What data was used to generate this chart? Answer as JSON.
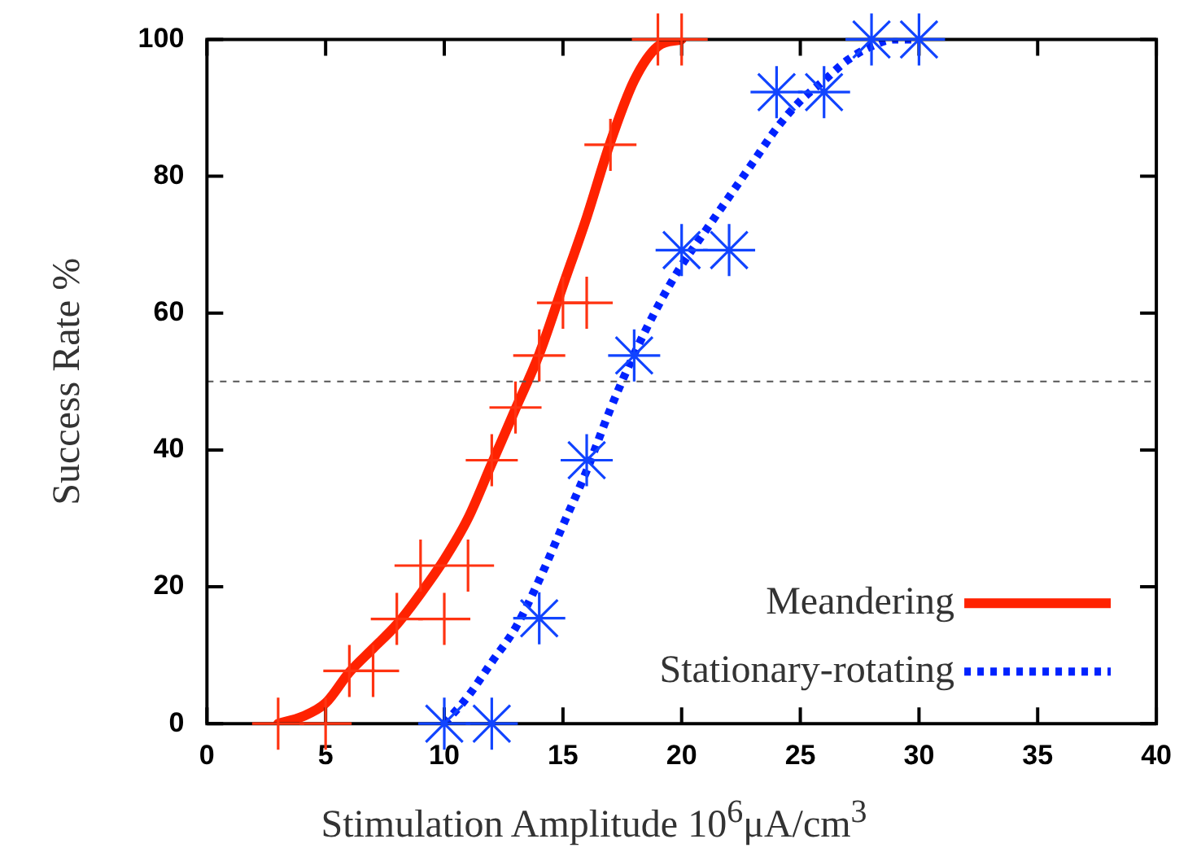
{
  "chart_data": {
    "type": "line",
    "xlabel": "Stimulation Amplitude 10$^{6}$μA/cm$^{3}$",
    "ylabel": "Success Rate %",
    "xlim": [
      0,
      40
    ],
    "xticks": [
      0,
      5,
      10,
      15,
      20,
      25,
      30,
      35,
      40
    ],
    "ylim": [
      0,
      100
    ],
    "yticks": [
      0,
      20,
      40,
      60,
      80,
      100
    ],
    "grid": false,
    "legend": "bottom right",
    "ref_lines": [
      {
        "axis": "y",
        "value": 50,
        "color": "#555555",
        "line_style": "dashed"
      }
    ],
    "series": [
      {
        "type": "scatter",
        "color": "#ff3311",
        "marker": "cross",
        "x": [
          3,
          5,
          6,
          7,
          8,
          9,
          10,
          11,
          12,
          13,
          14,
          15,
          16,
          17,
          19,
          20
        ],
        "values": [
          0,
          0,
          7.7,
          7.7,
          15.3,
          23.1,
          15.3,
          23.1,
          38.5,
          46.2,
          53.8,
          61.5,
          61.5,
          84.6,
          100,
          100
        ]
      },
      {
        "type": "scatter",
        "color": "#1144ff",
        "marker": "star",
        "x": [
          10,
          12,
          14,
          16,
          18,
          20,
          22,
          24,
          26,
          28,
          30
        ],
        "values": [
          0,
          0,
          15.4,
          38.5,
          53.8,
          69.2,
          69.2,
          92.3,
          92.3,
          100,
          100
        ]
      },
      {
        "type": "line",
        "name": "Meandering",
        "color": "#ff2200",
        "marker": "none",
        "line_style": "solid",
        "x": [
          3,
          4,
          5,
          6,
          7,
          8,
          9,
          10,
          11,
          12,
          13,
          14,
          15,
          16,
          17,
          18,
          19,
          20
        ],
        "values": [
          0,
          1,
          3,
          7.5,
          11,
          14.5,
          19,
          24,
          30,
          38,
          46,
          54,
          64,
          74,
          85,
          94,
          99,
          100
        ]
      },
      {
        "type": "line",
        "name": "Stationary-rotating",
        "color": "#0022ff",
        "marker": "none",
        "line_style": "dotted",
        "x": [
          10,
          11,
          12,
          13,
          14,
          15,
          16,
          17,
          18,
          19,
          20,
          21,
          22,
          23,
          24,
          25,
          26,
          27,
          28,
          29,
          30
        ],
        "values": [
          0,
          4,
          9,
          14,
          21,
          29,
          37,
          46,
          54,
          61,
          67,
          72,
          77,
          82,
          87,
          91,
          94,
          97,
          99,
          100,
          100
        ]
      }
    ]
  }
}
